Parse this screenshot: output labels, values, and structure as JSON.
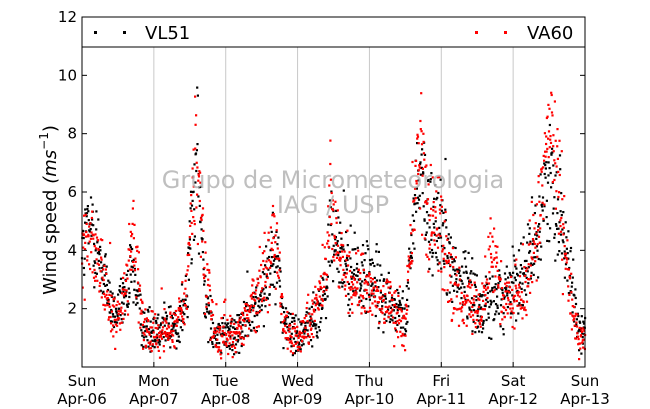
{
  "chart_data": {
    "type": "scatter",
    "ylabel": "Wind speed",
    "ylabel_unit": "(ms",
    "ylabel_exp": "−1",
    "ylim": [
      0,
      12
    ],
    "yticks": [
      "2",
      "4",
      "6",
      "8",
      "10",
      "12"
    ],
    "xlim_days": [
      0,
      7
    ],
    "xticks": [
      {
        "day": "Sun",
        "date": "Apr-06"
      },
      {
        "day": "Mon",
        "date": "Apr-07"
      },
      {
        "day": "Tue",
        "date": "Apr-08"
      },
      {
        "day": "Wed",
        "date": "Apr-09"
      },
      {
        "day": "Thu",
        "date": "Apr-10"
      },
      {
        "day": "Fri",
        "date": "Apr-11"
      },
      {
        "day": "Sat",
        "date": "Apr-12"
      },
      {
        "day": "Sun",
        "date": "Apr-13"
      }
    ],
    "grid": "vertical",
    "legend_position": "top",
    "watermark": [
      "Grupo de Micrometeorologia",
      "IAG / USP"
    ],
    "series": [
      {
        "name": "VL51",
        "color": "#000000",
        "profile": [
          [
            0,
            4.2
          ],
          [
            0.15,
            4.8
          ],
          [
            0.3,
            3.2
          ],
          [
            0.45,
            1.8
          ],
          [
            0.6,
            2.2
          ],
          [
            0.7,
            3.5
          ],
          [
            0.85,
            1.4
          ],
          [
            1.0,
            1.3
          ],
          [
            1.15,
            1.5
          ],
          [
            1.3,
            1.3
          ],
          [
            1.45,
            2.2
          ],
          [
            1.55,
            5.8
          ],
          [
            1.6,
            7.2
          ],
          [
            1.7,
            3.0
          ],
          [
            1.85,
            1.0
          ],
          [
            2.0,
            1.2
          ],
          [
            2.2,
            1.2
          ],
          [
            2.4,
            2.0
          ],
          [
            2.55,
            3.0
          ],
          [
            2.7,
            4.2
          ],
          [
            2.8,
            1.6
          ],
          [
            3.0,
            1.0
          ],
          [
            3.2,
            1.6
          ],
          [
            3.4,
            2.6
          ],
          [
            3.45,
            5.0
          ],
          [
            3.55,
            3.8
          ],
          [
            3.7,
            3.3
          ],
          [
            3.85,
            3.0
          ],
          [
            4.0,
            3.0
          ],
          [
            4.2,
            2.5
          ],
          [
            4.4,
            2.0
          ],
          [
            4.5,
            1.5
          ],
          [
            4.6,
            4.5
          ],
          [
            4.7,
            7.0
          ],
          [
            4.8,
            5.5
          ],
          [
            5.0,
            4.8
          ],
          [
            5.2,
            3.2
          ],
          [
            5.4,
            2.8
          ],
          [
            5.55,
            2.0
          ],
          [
            5.7,
            2.2
          ],
          [
            5.85,
            2.6
          ],
          [
            6.0,
            2.8
          ],
          [
            6.2,
            3.4
          ],
          [
            6.35,
            4.6
          ],
          [
            6.5,
            6.6
          ],
          [
            6.65,
            5.2
          ],
          [
            6.8,
            3.0
          ],
          [
            6.9,
            1.3
          ],
          [
            7.0,
            1.2
          ]
        ]
      },
      {
        "name": "VA60",
        "color": "#ff0000",
        "profile": [
          [
            0,
            3.9
          ],
          [
            0.15,
            4.3
          ],
          [
            0.3,
            2.8
          ],
          [
            0.45,
            1.5
          ],
          [
            0.6,
            2.5
          ],
          [
            0.7,
            4.8
          ],
          [
            0.85,
            1.3
          ],
          [
            1.0,
            1.1
          ],
          [
            1.15,
            1.2
          ],
          [
            1.3,
            1.4
          ],
          [
            1.45,
            2.5
          ],
          [
            1.55,
            6.2
          ],
          [
            1.6,
            7.8
          ],
          [
            1.7,
            3.2
          ],
          [
            1.85,
            1.0
          ],
          [
            2.0,
            1.1
          ],
          [
            2.2,
            1.3
          ],
          [
            2.4,
            2.2
          ],
          [
            2.55,
            3.2
          ],
          [
            2.7,
            4.4
          ],
          [
            2.8,
            1.5
          ],
          [
            3.0,
            0.9
          ],
          [
            3.2,
            1.7
          ],
          [
            3.4,
            2.8
          ],
          [
            3.45,
            6.5
          ],
          [
            3.55,
            4.2
          ],
          [
            3.7,
            3.1
          ],
          [
            3.85,
            2.8
          ],
          [
            4.0,
            2.7
          ],
          [
            4.2,
            2.2
          ],
          [
            4.4,
            1.8
          ],
          [
            4.5,
            1.4
          ],
          [
            4.6,
            5.0
          ],
          [
            4.7,
            7.8
          ],
          [
            4.8,
            5.0
          ],
          [
            5.0,
            4.4
          ],
          [
            5.2,
            2.5
          ],
          [
            5.4,
            2.2
          ],
          [
            5.55,
            1.8
          ],
          [
            5.7,
            4.2
          ],
          [
            5.85,
            2.3
          ],
          [
            6.0,
            2.2
          ],
          [
            6.2,
            3.0
          ],
          [
            6.35,
            5.2
          ],
          [
            6.5,
            8.0
          ],
          [
            6.65,
            5.8
          ],
          [
            6.8,
            2.5
          ],
          [
            6.9,
            1.1
          ],
          [
            7.0,
            1.0
          ]
        ]
      }
    ]
  }
}
